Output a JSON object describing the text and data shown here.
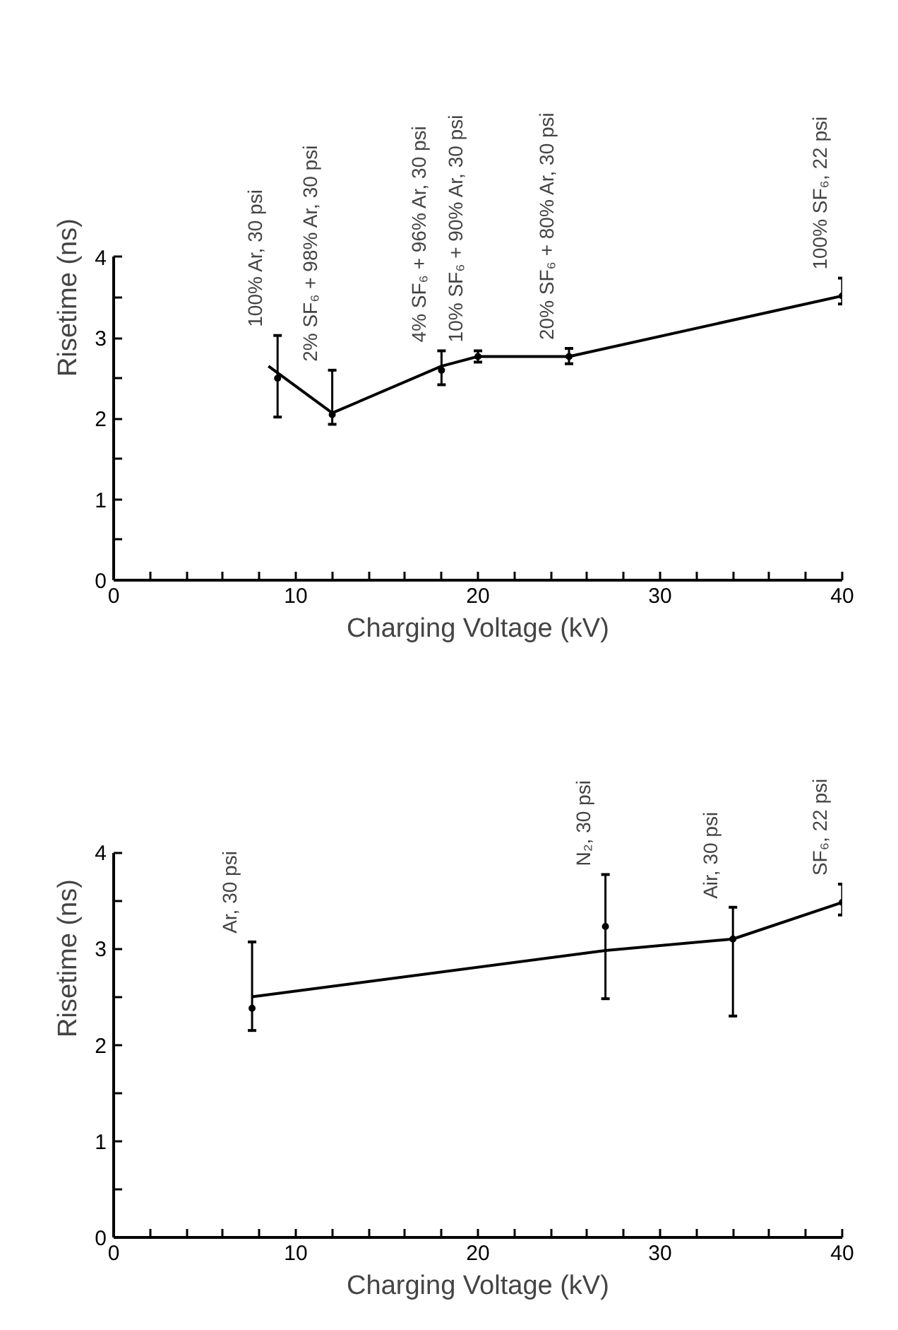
{
  "chart_data": [
    {
      "type": "line",
      "xlabel": "Charging Voltage (kV)",
      "ylabel": "Risetime (ns)",
      "xlim": [
        0,
        40
      ],
      "ylim": [
        0,
        4
      ],
      "xticks": [
        0,
        {
          "value": 2,
          "label": null
        },
        {
          "value": 4,
          "label": null
        },
        {
          "value": 6,
          "label": null
        },
        {
          "value": 8,
          "label": null
        },
        10,
        {
          "value": 12,
          "label": null
        },
        {
          "value": 14,
          "label": null
        },
        {
          "value": 16,
          "label": null
        },
        {
          "value": 18,
          "label": null
        },
        20,
        {
          "value": 22,
          "label": null
        },
        {
          "value": 24,
          "label": null
        },
        {
          "value": 26,
          "label": null
        },
        {
          "value": 28,
          "label": null
        },
        30,
        {
          "value": 32,
          "label": null
        },
        {
          "value": 34,
          "label": null
        },
        {
          "value": 36,
          "label": null
        },
        {
          "value": 38,
          "label": null
        },
        40
      ],
      "yticks": [
        0,
        {
          "value": 0.5,
          "label": null
        },
        1,
        {
          "value": 1.5,
          "label": null
        },
        2,
        {
          "value": 2.5,
          "label": null
        },
        3,
        {
          "value": 3.5,
          "label": null
        },
        4
      ],
      "grid": false,
      "line_style": "solid",
      "series": [
        {
          "color": "#000000",
          "marker": "none",
          "x": [
            8.5,
            12,
            18,
            20,
            25,
            40
          ],
          "values": [
            2.65,
            2.07,
            2.65,
            2.77,
            2.77,
            3.52
          ]
        },
        {
          "type": "scatter",
          "color": "#000000",
          "marker": "circle",
          "x": [
            9,
            12,
            18,
            20,
            25,
            40
          ],
          "values": [
            2.5,
            2.05,
            2.6,
            2.77,
            2.77,
            3.52
          ],
          "errors": [
            [
              2.02,
              3.03
            ],
            [
              1.93,
              2.6
            ],
            [
              2.42,
              2.84
            ],
            [
              2.7,
              2.84
            ],
            [
              2.68,
              2.87
            ],
            [
              3.42,
              3.74
            ]
          ]
        }
      ],
      "annotations": [
        {
          "text": "100% Ar, 30 psi",
          "x": 9,
          "y": 3.03
        },
        {
          "text": "2% SF₆ + 98% Ar, 30 psi",
          "x": 12,
          "y": 2.6
        },
        {
          "text": "4% SF₆ + 96% Ar, 30 psi",
          "x": 18,
          "y": 2.84
        },
        {
          "text": "10% SF₆ + 90% Ar, 30 psi",
          "x": 20,
          "y": 2.84
        },
        {
          "text": "20% SF₆ + 80% Ar, 30 psi",
          "x": 25,
          "y": 2.87
        },
        {
          "text": "100% SF₆, 22 psi",
          "x": 40,
          "y": 3.74
        }
      ]
    },
    {
      "type": "line",
      "xlabel": "Charging Voltage (kV)",
      "ylabel": "Risetime (ns)",
      "xlim": [
        0,
        40
      ],
      "ylim": [
        0,
        4
      ],
      "xticks": [
        0,
        {
          "value": 2,
          "label": null
        },
        {
          "value": 4,
          "label": null
        },
        {
          "value": 6,
          "label": null
        },
        {
          "value": 8,
          "label": null
        },
        10,
        {
          "value": 12,
          "label": null
        },
        {
          "value": 14,
          "label": null
        },
        {
          "value": 16,
          "label": null
        },
        {
          "value": 18,
          "label": null
        },
        20,
        {
          "value": 22,
          "label": null
        },
        {
          "value": 24,
          "label": null
        },
        {
          "value": 26,
          "label": null
        },
        {
          "value": 28,
          "label": null
        },
        30,
        {
          "value": 32,
          "label": null
        },
        {
          "value": 34,
          "label": null
        },
        {
          "value": 36,
          "label": null
        },
        {
          "value": 38,
          "label": null
        },
        40
      ],
      "yticks": [
        0,
        {
          "value": 0.5,
          "label": null
        },
        1,
        {
          "value": 1.5,
          "label": null
        },
        2,
        {
          "value": 2.5,
          "label": null
        },
        3,
        {
          "value": 3.5,
          "label": null
        },
        4
      ],
      "grid": false,
      "line_style": "solid",
      "series": [
        {
          "color": "#000000",
          "marker": "none",
          "x": [
            7.6,
            27,
            34,
            40
          ],
          "values": [
            2.5,
            2.98,
            3.1,
            3.48
          ]
        },
        {
          "type": "scatter",
          "color": "#000000",
          "marker": "circle",
          "x": [
            7.6,
            27,
            34,
            40
          ],
          "values": [
            2.38,
            3.23,
            3.1,
            3.48
          ],
          "errors": [
            [
              2.15,
              3.07
            ],
            [
              2.48,
              3.77
            ],
            [
              2.3,
              3.43
            ],
            [
              3.35,
              3.67
            ]
          ]
        }
      ],
      "annotations": [
        {
          "text": "Ar, 30 psi",
          "x": 7.6,
          "y": 3.07
        },
        {
          "text": "N₂, 30 psi",
          "x": 27,
          "y": 3.77
        },
        {
          "text": "Air, 30 psi",
          "x": 34,
          "y": 3.43
        },
        {
          "text": "SF₆, 22 psi",
          "x": 40,
          "y": 3.67
        }
      ]
    }
  ]
}
